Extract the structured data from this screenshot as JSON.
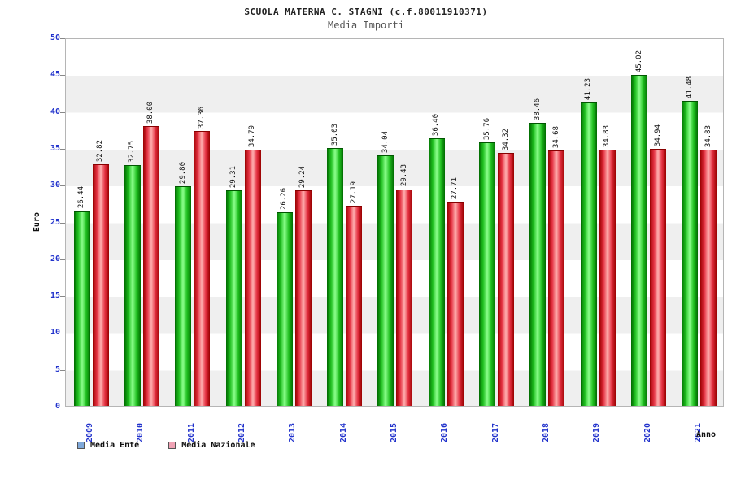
{
  "title": "SCUOLA MATERNA C. STAGNI (c.f.80011910371)",
  "subtitle": "Media Importi",
  "chart_data": {
    "type": "bar",
    "categories": [
      "2009",
      "2010",
      "2011",
      "2012",
      "2013",
      "2014",
      "2015",
      "2016",
      "2017",
      "2018",
      "2019",
      "2020",
      "2021"
    ],
    "series": [
      {
        "name": "Media Ente",
        "color": "#1fbf1f",
        "values": [
          26.44,
          32.75,
          29.8,
          29.31,
          26.26,
          35.03,
          34.04,
          36.4,
          35.76,
          38.46,
          41.23,
          45.02,
          41.48
        ]
      },
      {
        "name": "Media Nazionale",
        "color": "#e43040",
        "values": [
          32.82,
          38.0,
          37.36,
          34.79,
          29.24,
          27.19,
          29.43,
          27.71,
          34.32,
          34.68,
          34.83,
          34.94,
          34.83
        ]
      }
    ],
    "title": "SCUOLA MATERNA C. STAGNI (c.f.80011910371)",
    "subtitle": "Media Importi",
    "xlabel": "Anno",
    "ylabel": "Euro",
    "ylim": [
      0,
      50
    ],
    "ytick_step": 5,
    "grid": "horizontal-bands",
    "legend_position": "bottom"
  },
  "legend": {
    "items": [
      {
        "label": "Media Ente",
        "swatch": "#7fa8d9"
      },
      {
        "label": "Media Nazionale",
        "swatch": "#f0a3b5"
      }
    ]
  }
}
